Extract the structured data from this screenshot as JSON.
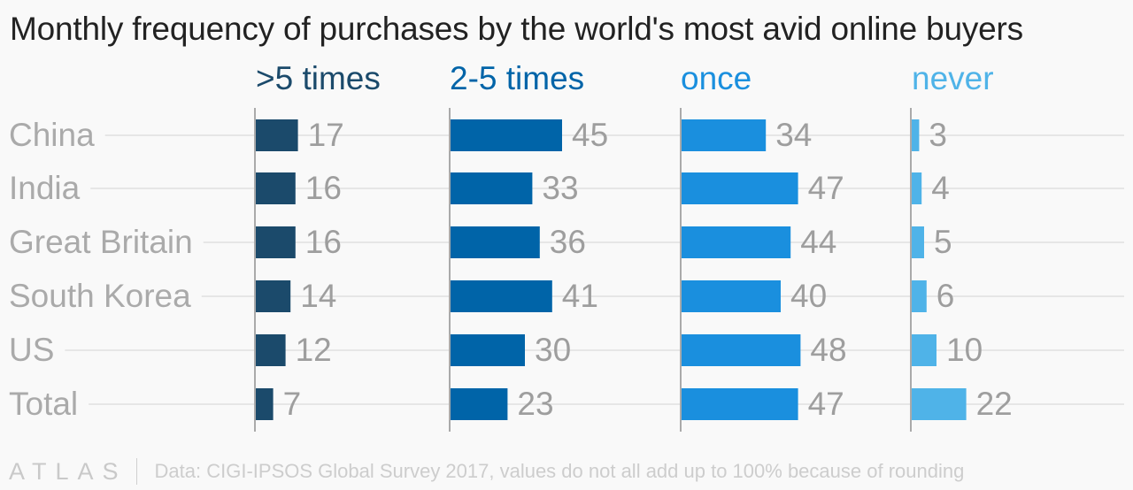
{
  "title": "Monthly frequency of purchases by the world's most avid online buyers",
  "footer": {
    "logo": "ATLAS",
    "source": "Data: CIGI-IPSOS Global Survey 2017, values do not all add up to 100% because of rounding"
  },
  "colors": {
    "gt5": "#1b4a6b",
    "2to5": "#0064a8",
    "once": "#1a8fde",
    "never": "#4fb3e8",
    "category_label": "#aaaaaa",
    "value_label": "#9e9e9e",
    "gridline": "#e6e6e6",
    "axis": "#aaaaaa"
  },
  "chart_data": {
    "type": "bar",
    "orientation": "horizontal",
    "layout": "small-multiples",
    "categories": [
      "China",
      "India",
      "Great Britain",
      "South Korea",
      "US",
      "Total"
    ],
    "series": [
      {
        "name": ">5 times",
        "values": [
          17,
          16,
          16,
          14,
          12,
          7
        ]
      },
      {
        "name": "2-5 times",
        "values": [
          45,
          33,
          36,
          41,
          30,
          23
        ]
      },
      {
        "name": "once",
        "values": [
          34,
          47,
          44,
          40,
          48,
          47
        ]
      },
      {
        "name": "never",
        "values": [
          3,
          4,
          5,
          6,
          10,
          22
        ]
      }
    ],
    "xlim": [
      0,
      100
    ],
    "grid": true,
    "legend": "column headers"
  }
}
